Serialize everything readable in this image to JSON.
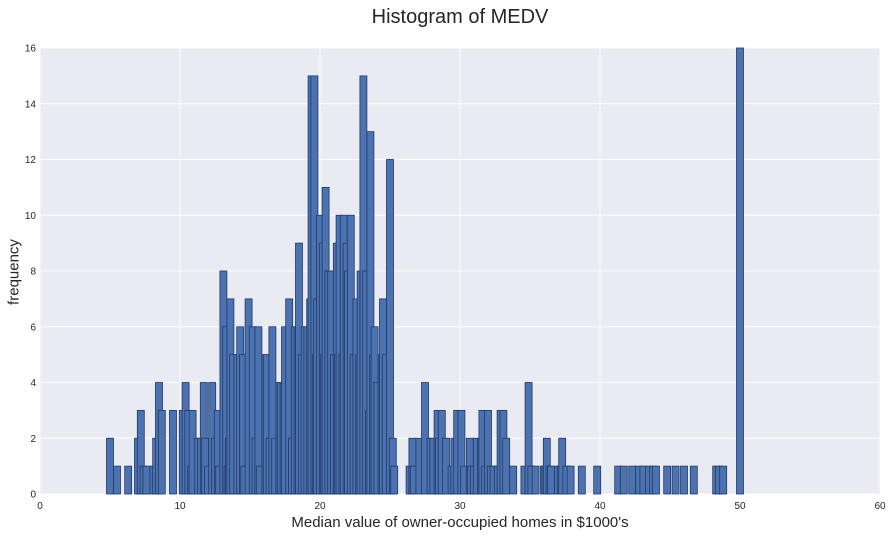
{
  "chart_data": {
    "type": "bar",
    "title": "Histogram of MEDV",
    "xlabel": "Median value of owner-occupied homes in $1000's",
    "ylabel": "frequency",
    "xlim": [
      0,
      60
    ],
    "ylim": [
      0,
      16
    ],
    "xticks": [
      "0",
      "10",
      "20",
      "30",
      "40",
      "50",
      "60"
    ],
    "yticks": [
      "0",
      "2",
      "4",
      "6",
      "8",
      "10",
      "12",
      "14",
      "16"
    ],
    "grid": true,
    "bin_width": 0.5,
    "bars": [
      {
        "x": 5.0,
        "y": 2
      },
      {
        "x": 5.5,
        "y": 1
      },
      {
        "x": 6.3,
        "y": 1
      },
      {
        "x": 7.0,
        "y": 2
      },
      {
        "x": 7.2,
        "y": 3
      },
      {
        "x": 7.4,
        "y": 1
      },
      {
        "x": 7.6,
        "y": 1
      },
      {
        "x": 8.1,
        "y": 1
      },
      {
        "x": 8.3,
        "y": 2
      },
      {
        "x": 8.5,
        "y": 4
      },
      {
        "x": 8.7,
        "y": 3
      },
      {
        "x": 9.5,
        "y": 3
      },
      {
        "x": 10.2,
        "y": 3
      },
      {
        "x": 10.4,
        "y": 4
      },
      {
        "x": 10.6,
        "y": 3
      },
      {
        "x": 10.8,
        "y": 1
      },
      {
        "x": 10.9,
        "y": 3
      },
      {
        "x": 11.3,
        "y": 2
      },
      {
        "x": 11.5,
        "y": 2
      },
      {
        "x": 11.7,
        "y": 4
      },
      {
        "x": 11.8,
        "y": 2
      },
      {
        "x": 12.0,
        "y": 1
      },
      {
        "x": 12.3,
        "y": 4
      },
      {
        "x": 12.5,
        "y": 2
      },
      {
        "x": 12.7,
        "y": 3
      },
      {
        "x": 12.8,
        "y": 1
      },
      {
        "x": 13.1,
        "y": 8
      },
      {
        "x": 13.3,
        "y": 6
      },
      {
        "x": 13.4,
        "y": 1
      },
      {
        "x": 13.5,
        "y": 2
      },
      {
        "x": 13.6,
        "y": 7
      },
      {
        "x": 13.8,
        "y": 5
      },
      {
        "x": 14.1,
        "y": 5
      },
      {
        "x": 14.3,
        "y": 6
      },
      {
        "x": 14.5,
        "y": 5
      },
      {
        "x": 14.6,
        "y": 1
      },
      {
        "x": 14.9,
        "y": 7
      },
      {
        "x": 15.2,
        "y": 6
      },
      {
        "x": 15.4,
        "y": 2
      },
      {
        "x": 15.6,
        "y": 6
      },
      {
        "x": 15.7,
        "y": 1
      },
      {
        "x": 16.1,
        "y": 5
      },
      {
        "x": 16.2,
        "y": 5
      },
      {
        "x": 16.4,
        "y": 2
      },
      {
        "x": 16.6,
        "y": 6
      },
      {
        "x": 16.8,
        "y": 2
      },
      {
        "x": 17.1,
        "y": 4
      },
      {
        "x": 17.2,
        "y": 4
      },
      {
        "x": 17.4,
        "y": 4
      },
      {
        "x": 17.5,
        "y": 6
      },
      {
        "x": 17.8,
        "y": 7
      },
      {
        "x": 18.0,
        "y": 2
      },
      {
        "x": 18.2,
        "y": 6
      },
      {
        "x": 18.4,
        "y": 6
      },
      {
        "x": 18.5,
        "y": 9
      },
      {
        "x": 18.7,
        "y": 5
      },
      {
        "x": 18.9,
        "y": 6
      },
      {
        "x": 19.1,
        "y": 6
      },
      {
        "x": 19.3,
        "y": 7
      },
      {
        "x": 19.4,
        "y": 15
      },
      {
        "x": 19.6,
        "y": 15
      },
      {
        "x": 19.7,
        "y": 5
      },
      {
        "x": 19.8,
        "y": 7
      },
      {
        "x": 20.0,
        "y": 10
      },
      {
        "x": 20.2,
        "y": 9
      },
      {
        "x": 20.3,
        "y": 5
      },
      {
        "x": 20.4,
        "y": 11
      },
      {
        "x": 20.6,
        "y": 8
      },
      {
        "x": 20.8,
        "y": 8
      },
      {
        "x": 21.0,
        "y": 5
      },
      {
        "x": 21.2,
        "y": 9
      },
      {
        "x": 21.3,
        "y": 5
      },
      {
        "x": 21.4,
        "y": 10
      },
      {
        "x": 21.6,
        "y": 5
      },
      {
        "x": 21.7,
        "y": 10
      },
      {
        "x": 21.9,
        "y": 9
      },
      {
        "x": 22.0,
        "y": 8
      },
      {
        "x": 22.2,
        "y": 10
      },
      {
        "x": 22.4,
        "y": 5
      },
      {
        "x": 22.6,
        "y": 7
      },
      {
        "x": 22.8,
        "y": 5
      },
      {
        "x": 22.9,
        "y": 8
      },
      {
        "x": 23.1,
        "y": 15
      },
      {
        "x": 23.3,
        "y": 8
      },
      {
        "x": 23.5,
        "y": 3
      },
      {
        "x": 23.6,
        "y": 13
      },
      {
        "x": 23.8,
        "y": 5
      },
      {
        "x": 23.9,
        "y": 6
      },
      {
        "x": 24.1,
        "y": 4
      },
      {
        "x": 24.4,
        "y": 5
      },
      {
        "x": 24.5,
        "y": 7
      },
      {
        "x": 24.7,
        "y": 5
      },
      {
        "x": 25.0,
        "y": 12
      },
      {
        "x": 25.2,
        "y": 2
      },
      {
        "x": 25.3,
        "y": 1
      },
      {
        "x": 26.4,
        "y": 1
      },
      {
        "x": 26.6,
        "y": 2
      },
      {
        "x": 26.7,
        "y": 1
      },
      {
        "x": 27.1,
        "y": 2
      },
      {
        "x": 27.5,
        "y": 4
      },
      {
        "x": 27.9,
        "y": 2
      },
      {
        "x": 28.1,
        "y": 2
      },
      {
        "x": 28.4,
        "y": 3
      },
      {
        "x": 28.5,
        "y": 2
      },
      {
        "x": 28.7,
        "y": 3
      },
      {
        "x": 29.0,
        "y": 2
      },
      {
        "x": 29.4,
        "y": 1
      },
      {
        "x": 29.6,
        "y": 2
      },
      {
        "x": 29.8,
        "y": 3
      },
      {
        "x": 30.1,
        "y": 3
      },
      {
        "x": 30.3,
        "y": 1
      },
      {
        "x": 30.7,
        "y": 2
      },
      {
        "x": 30.8,
        "y": 1
      },
      {
        "x": 31.0,
        "y": 1
      },
      {
        "x": 31.2,
        "y": 2
      },
      {
        "x": 31.5,
        "y": 2
      },
      {
        "x": 31.6,
        "y": 3
      },
      {
        "x": 31.8,
        "y": 1
      },
      {
        "x": 32.0,
        "y": 3
      },
      {
        "x": 32.2,
        "y": 1
      },
      {
        "x": 32.4,
        "y": 1
      },
      {
        "x": 32.7,
        "y": 1
      },
      {
        "x": 32.9,
        "y": 3
      },
      {
        "x": 33.1,
        "y": 3
      },
      {
        "x": 33.3,
        "y": 2
      },
      {
        "x": 33.8,
        "y": 1
      },
      {
        "x": 34.6,
        "y": 1
      },
      {
        "x": 34.9,
        "y": 4
      },
      {
        "x": 35.1,
        "y": 1
      },
      {
        "x": 35.4,
        "y": 1
      },
      {
        "x": 36.0,
        "y": 1
      },
      {
        "x": 36.1,
        "y": 1
      },
      {
        "x": 36.2,
        "y": 2
      },
      {
        "x": 36.4,
        "y": 1
      },
      {
        "x": 36.5,
        "y": 1
      },
      {
        "x": 37.0,
        "y": 1
      },
      {
        "x": 37.2,
        "y": 1
      },
      {
        "x": 37.3,
        "y": 2
      },
      {
        "x": 37.6,
        "y": 1
      },
      {
        "x": 37.9,
        "y": 1
      },
      {
        "x": 38.7,
        "y": 1
      },
      {
        "x": 39.8,
        "y": 1
      },
      {
        "x": 41.3,
        "y": 1
      },
      {
        "x": 41.7,
        "y": 1
      },
      {
        "x": 42.3,
        "y": 1
      },
      {
        "x": 42.8,
        "y": 1
      },
      {
        "x": 43.1,
        "y": 1
      },
      {
        "x": 43.5,
        "y": 1
      },
      {
        "x": 43.8,
        "y": 1
      },
      {
        "x": 44.0,
        "y": 1
      },
      {
        "x": 44.8,
        "y": 1
      },
      {
        "x": 45.4,
        "y": 1
      },
      {
        "x": 46.0,
        "y": 1
      },
      {
        "x": 46.7,
        "y": 1
      },
      {
        "x": 48.3,
        "y": 1
      },
      {
        "x": 48.5,
        "y": 1
      },
      {
        "x": 48.8,
        "y": 1
      },
      {
        "x": 50.0,
        "y": 16
      }
    ],
    "colors": {
      "bar_fill": "#4c72b0",
      "bar_edge": "#1e3a66",
      "plot_background": "#eaeaf2",
      "grid": "#ffffff",
      "text": "#262626"
    }
  }
}
